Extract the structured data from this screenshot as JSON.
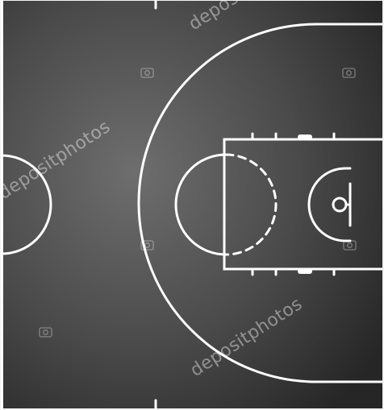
{
  "scene": {
    "subject": "basketball half court, top view",
    "colors": {
      "court_center": "#6e6e6e",
      "court_edge": "#2a2a2a",
      "lines": "#ffffff",
      "outer_frame": "#f2f2f2",
      "watermark": "#ffffff"
    }
  },
  "watermark": {
    "text": "depositphotos",
    "icon": "camera-icon"
  }
}
